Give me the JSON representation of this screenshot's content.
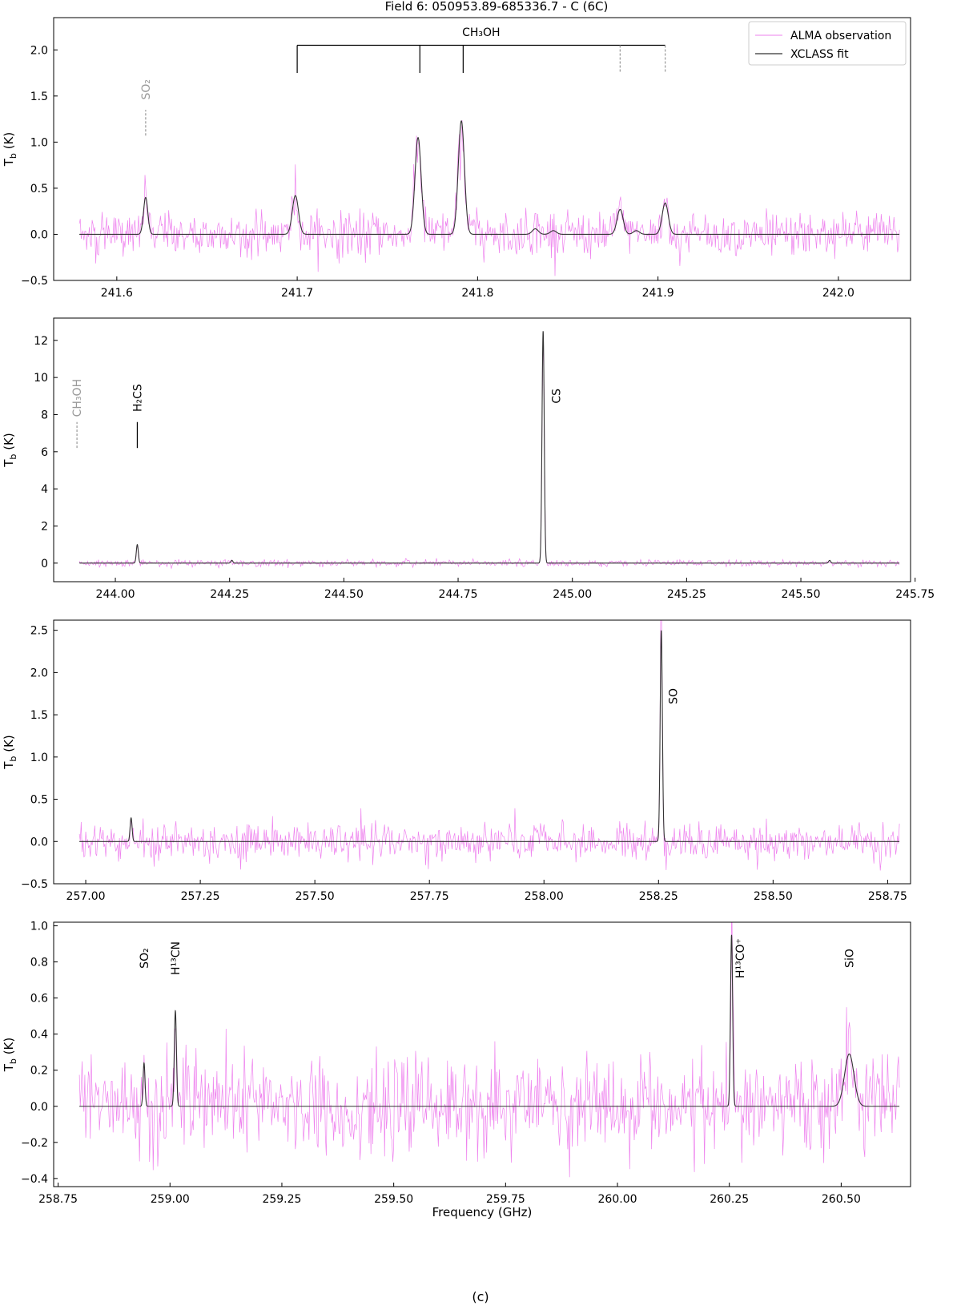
{
  "figure": {
    "title": "Field 6: 050953.89-685336.7 - C (6C)",
    "caption": "(c)",
    "colors": {
      "observation": "#ee82ee",
      "fit": "#333333",
      "tentative": "#999999"
    }
  },
  "legend": {
    "placement": "top-right",
    "observation_label": "ALMA observation",
    "fit_label": "XCLASS fit"
  },
  "chart_data": [
    {
      "type": "line",
      "xlabel": "",
      "ylabel": "Tb (K)",
      "xlim": [
        241.565,
        242.04
      ],
      "ylim": [
        -0.5,
        2.35
      ],
      "xticks": [
        241.6,
        241.7,
        241.8,
        241.9,
        242.0
      ],
      "xtick_labels": [
        "241.6",
        "241.7",
        "241.8",
        "241.9",
        "242.0"
      ],
      "yticks": [
        -0.5,
        0.0,
        0.5,
        1.0,
        1.5,
        2.0
      ],
      "ytick_labels": [
        "−0.5",
        "0.0",
        "0.5",
        "1.0",
        "1.5",
        "2.0"
      ],
      "noise_sigma": 0.12,
      "series": [
        {
          "name": "XCLASS fit",
          "role": "fit",
          "peaks": [
            {
              "x": 241.616,
              "amp": 0.4,
              "w": 0.0012
            },
            {
              "x": 241.699,
              "amp": 0.42,
              "w": 0.0017
            },
            {
              "x": 241.767,
              "amp": 1.05,
              "w": 0.0017
            },
            {
              "x": 241.791,
              "amp": 1.23,
              "w": 0.0017
            },
            {
              "x": 241.832,
              "amp": 0.06,
              "w": 0.0017
            },
            {
              "x": 241.842,
              "amp": 0.04,
              "w": 0.0017
            },
            {
              "x": 241.879,
              "amp": 0.27,
              "w": 0.0017
            },
            {
              "x": 241.888,
              "amp": 0.04,
              "w": 0.0017
            },
            {
              "x": 241.904,
              "amp": 0.34,
              "w": 0.0017
            }
          ]
        },
        {
          "name": "ALMA observation",
          "role": "observation"
        }
      ],
      "line_ids": [
        {
          "label": "SO₂",
          "x": 241.616,
          "tentative": true,
          "mark": [
            1.07,
            1.35
          ],
          "label_y": 1.57
        }
      ],
      "line_groups": [
        {
          "label": "CH₃OH",
          "top_y": 2.05,
          "label_y": 2.1,
          "marks": [
            {
              "x": 241.7,
              "bottom": 1.75,
              "tentative": false
            },
            {
              "x": 241.768,
              "bottom": 1.75,
              "tentative": false
            },
            {
              "x": 241.792,
              "bottom": 1.75,
              "tentative": false
            },
            {
              "x": 241.879,
              "bottom": 1.75,
              "tentative": true
            },
            {
              "x": 241.904,
              "bottom": 1.75,
              "tentative": true
            }
          ]
        }
      ]
    },
    {
      "type": "line",
      "xlabel": "",
      "ylabel": "Tb (K)",
      "xlim": [
        243.865,
        245.74
      ],
      "ylim": [
        -1.0,
        13.2
      ],
      "xticks": [
        244.0,
        244.25,
        244.5,
        244.75,
        245.0,
        245.25,
        245.5,
        245.75
      ],
      "xtick_labels": [
        "244.00",
        "244.25",
        "244.50",
        "244.75",
        "245.00",
        "245.25",
        "245.50",
        "245.75"
      ],
      "yticks": [
        0,
        2,
        4,
        6,
        8,
        10,
        12
      ],
      "ytick_labels": [
        "0",
        "2",
        "4",
        "6",
        "8",
        "10",
        "12"
      ],
      "noise_sigma": 0.09,
      "series": [
        {
          "name": "XCLASS fit",
          "role": "fit",
          "peaks": [
            {
              "x": 243.916,
              "amp": 0.3,
              "w": 0.0022
            },
            {
              "x": 244.048,
              "amp": 1.0,
              "w": 0.0022
            },
            {
              "x": 244.255,
              "amp": 0.15,
              "w": 0.0022
            },
            {
              "x": 244.936,
              "amp": 12.5,
              "w": 0.0024
            },
            {
              "x": 245.563,
              "amp": 0.15,
              "w": 0.0022
            }
          ]
        },
        {
          "name": "ALMA observation",
          "role": "observation"
        }
      ],
      "line_ids": [
        {
          "label": "CH₃OH",
          "x": 243.916,
          "tentative": true,
          "mark": [
            6.2,
            7.6
          ],
          "label_y": 8.9
        },
        {
          "label": "H₂CS",
          "x": 244.048,
          "tentative": false,
          "mark": [
            6.2,
            7.6
          ],
          "label_y": 8.9
        },
        {
          "label": "CS",
          "x": 244.965,
          "tentative": false,
          "mark": null,
          "label_y": 9.0
        }
      ]
    },
    {
      "type": "line",
      "xlabel": "",
      "ylabel": "Tb (K)",
      "xlim": [
        256.93,
        258.8
      ],
      "ylim": [
        -0.5,
        2.62
      ],
      "xticks": [
        257.0,
        257.25,
        257.5,
        257.75,
        258.0,
        258.25,
        258.5,
        258.75
      ],
      "xtick_labels": [
        "257.00",
        "257.25",
        "257.50",
        "257.75",
        "258.00",
        "258.25",
        "258.50",
        "258.75"
      ],
      "yticks": [
        -0.5,
        0.0,
        0.5,
        1.0,
        1.5,
        2.0,
        2.5
      ],
      "ytick_labels": [
        "−0.5",
        "0.0",
        "0.5",
        "1.0",
        "1.5",
        "2.0",
        "2.5"
      ],
      "noise_sigma": 0.11,
      "series": [
        {
          "name": "XCLASS fit",
          "role": "fit",
          "peaks": [
            {
              "x": 257.099,
              "amp": 0.28,
              "w": 0.0022
            },
            {
              "x": 258.256,
              "amp": 2.5,
              "w": 0.0024
            }
          ]
        },
        {
          "name": "ALMA observation",
          "role": "observation"
        }
      ],
      "line_ids": [
        {
          "label": "SO",
          "x": 258.282,
          "tentative": false,
          "mark": null,
          "label_y": 1.72
        }
      ]
    },
    {
      "type": "line",
      "xlabel": "Frequency (GHz)",
      "ylabel": "Tb (K)",
      "xlim": [
        258.74,
        260.655
      ],
      "ylim": [
        -0.445,
        1.02
      ],
      "xticks": [
        258.75,
        259.0,
        259.25,
        259.5,
        259.75,
        260.0,
        260.25,
        260.5
      ],
      "xtick_labels": [
        "258.75",
        "259.00",
        "259.25",
        "259.50",
        "259.75",
        "260.00",
        "260.25",
        "260.50"
      ],
      "yticks": [
        -0.4,
        -0.2,
        0.0,
        0.2,
        0.4,
        0.6,
        0.8,
        1.0
      ],
      "ytick_labels": [
        "−0.4",
        "−0.2",
        "0.0",
        "0.2",
        "0.4",
        "0.6",
        "0.8",
        "1.0"
      ],
      "noise_sigma": 0.13,
      "series": [
        {
          "name": "XCLASS fit",
          "role": "fit",
          "peaks": [
            {
              "x": 258.942,
              "amp": 0.24,
              "w": 0.0022
            },
            {
              "x": 259.012,
              "amp": 0.53,
              "w": 0.0024
            },
            {
              "x": 260.255,
              "amp": 0.95,
              "w": 0.0024
            },
            {
              "x": 260.518,
              "amp": 0.29,
              "w": 0.0105
            }
          ]
        },
        {
          "name": "ALMA observation",
          "role": "observation"
        }
      ],
      "line_ids": [
        {
          "label": "SO₂",
          "x": 258.942,
          "tentative": false,
          "mark": null,
          "label_y": 0.82
        },
        {
          "label": "H¹³CN",
          "x": 259.012,
          "tentative": false,
          "mark": null,
          "label_y": 0.82
        },
        {
          "label": "H¹³CO⁺",
          "x": 260.274,
          "tentative": false,
          "mark": null,
          "label_y": 0.82
        },
        {
          "label": "SiO",
          "x": 260.518,
          "tentative": false,
          "mark": null,
          "label_y": 0.82
        }
      ]
    }
  ]
}
